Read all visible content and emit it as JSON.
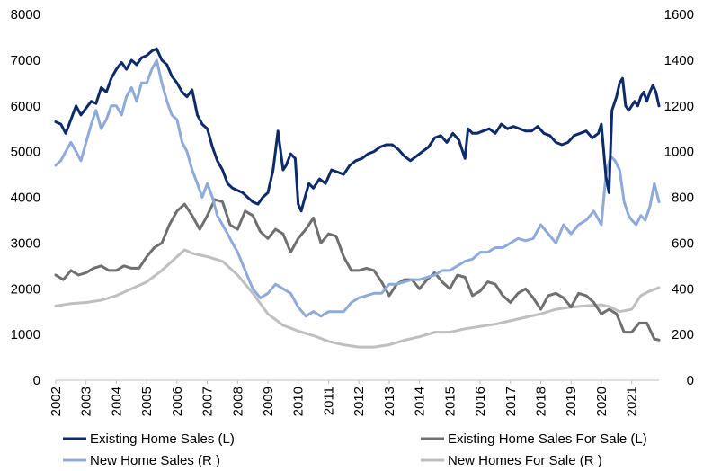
{
  "chart_data": {
    "type": "line",
    "title": "",
    "xlabel": "",
    "ylabel_left": "",
    "ylabel_right": "",
    "y_left_lim": [
      0,
      8000
    ],
    "y_right_lim": [
      0,
      1600
    ],
    "y_left_ticks": [
      "0",
      "1000",
      "2000",
      "3000",
      "4000",
      "5000",
      "6000",
      "7000",
      "8000"
    ],
    "y_right_ticks": [
      "0",
      "200",
      "400",
      "600",
      "800",
      "1000",
      "1200",
      "1400",
      "1600"
    ],
    "x_ticks": [
      "2002",
      "2003",
      "2004",
      "2005",
      "2006",
      "2007",
      "2008",
      "2009",
      "2010",
      "2011",
      "2012",
      "2013",
      "2014",
      "2015",
      "2016",
      "2017",
      "2018",
      "2019",
      "2020",
      "2021"
    ],
    "x_range": [
      2002.0,
      2021.9
    ],
    "grid": false,
    "legend_position": "bottom",
    "series": [
      {
        "name": "Existing Home Sales (L)",
        "axis": "left",
        "color": "#0d2b6b",
        "x": [
          2002.0,
          2002.17,
          2002.33,
          2002.5,
          2002.67,
          2002.83,
          2003.0,
          2003.17,
          2003.33,
          2003.5,
          2003.67,
          2003.83,
          2004.0,
          2004.17,
          2004.33,
          2004.5,
          2004.67,
          2004.83,
          2005.0,
          2005.17,
          2005.33,
          2005.5,
          2005.67,
          2005.83,
          2006.0,
          2006.17,
          2006.33,
          2006.5,
          2006.67,
          2006.83,
          2007.0,
          2007.17,
          2007.33,
          2007.5,
          2007.67,
          2007.83,
          2008.0,
          2008.17,
          2008.33,
          2008.5,
          2008.67,
          2008.83,
          2009.0,
          2009.17,
          2009.33,
          2009.5,
          2009.6,
          2009.75,
          2009.9,
          2010.0,
          2010.1,
          2010.2,
          2010.35,
          2010.5,
          2010.7,
          2010.9,
          2011.1,
          2011.3,
          2011.5,
          2011.7,
          2011.9,
          2012.1,
          2012.3,
          2012.5,
          2012.7,
          2012.9,
          2013.1,
          2013.3,
          2013.5,
          2013.7,
          2013.9,
          2014.1,
          2014.3,
          2014.5,
          2014.7,
          2014.9,
          2015.1,
          2015.3,
          2015.5,
          2015.6,
          2015.75,
          2015.9,
          2016.1,
          2016.3,
          2016.5,
          2016.7,
          2016.9,
          2017.1,
          2017.3,
          2017.5,
          2017.7,
          2017.9,
          2018.1,
          2018.3,
          2018.5,
          2018.7,
          2018.9,
          2019.1,
          2019.3,
          2019.5,
          2019.7,
          2019.9,
          2020.0,
          2020.15,
          2020.25,
          2020.35,
          2020.5,
          2020.6,
          2020.7,
          2020.8,
          2020.9,
          2021.0,
          2021.1,
          2021.2,
          2021.3,
          2021.4,
          2021.5,
          2021.6,
          2021.7,
          2021.8,
          2021.9
        ],
        "values": [
          5650,
          5600,
          5400,
          5700,
          6000,
          5800,
          5950,
          6100,
          6050,
          6400,
          6300,
          6600,
          6800,
          6950,
          6800,
          7000,
          6900,
          7050,
          7100,
          7200,
          7250,
          7000,
          6900,
          6650,
          6500,
          6300,
          6200,
          6350,
          5800,
          5600,
          5500,
          5100,
          4800,
          4600,
          4300,
          4200,
          4150,
          4100,
          4000,
          3900,
          3850,
          4000,
          4100,
          4600,
          5450,
          4600,
          4700,
          4950,
          4850,
          3850,
          3700,
          3950,
          4300,
          4200,
          4400,
          4300,
          4600,
          4550,
          4500,
          4700,
          4800,
          4850,
          4950,
          5000,
          5100,
          5150,
          5150,
          5050,
          4900,
          4800,
          4900,
          5000,
          5100,
          5300,
          5350,
          5200,
          5400,
          5250,
          4850,
          5500,
          5400,
          5400,
          5450,
          5500,
          5400,
          5600,
          5500,
          5550,
          5500,
          5450,
          5450,
          5550,
          5400,
          5350,
          5200,
          5150,
          5200,
          5350,
          5400,
          5450,
          5300,
          5400,
          5600,
          4450,
          4100,
          5900,
          6200,
          6500,
          6600,
          6000,
          5900,
          6000,
          6100,
          6000,
          6200,
          6300,
          6100,
          6300,
          6450,
          6300,
          6000
        ]
      },
      {
        "name": "Existing Home Sales For Sale (L)",
        "axis": "left",
        "color": "#6f6f6f",
        "x": [
          2002.0,
          2002.25,
          2002.5,
          2002.75,
          2003.0,
          2003.25,
          2003.5,
          2003.75,
          2004.0,
          2004.25,
          2004.5,
          2004.75,
          2005.0,
          2005.25,
          2005.5,
          2005.75,
          2006.0,
          2006.25,
          2006.5,
          2006.75,
          2007.0,
          2007.25,
          2007.5,
          2007.75,
          2008.0,
          2008.25,
          2008.5,
          2008.75,
          2009.0,
          2009.25,
          2009.5,
          2009.75,
          2010.0,
          2010.25,
          2010.5,
          2010.75,
          2011.0,
          2011.25,
          2011.5,
          2011.75,
          2012.0,
          2012.25,
          2012.5,
          2012.75,
          2013.0,
          2013.25,
          2013.5,
          2013.75,
          2014.0,
          2014.25,
          2014.5,
          2014.75,
          2015.0,
          2015.25,
          2015.5,
          2015.75,
          2016.0,
          2016.25,
          2016.5,
          2016.75,
          2017.0,
          2017.25,
          2017.5,
          2017.75,
          2018.0,
          2018.25,
          2018.5,
          2018.75,
          2019.0,
          2019.25,
          2019.5,
          2019.75,
          2020.0,
          2020.25,
          2020.5,
          2020.75,
          2021.0,
          2021.25,
          2021.5,
          2021.75,
          2021.9
        ],
        "values": [
          2300,
          2200,
          2400,
          2300,
          2350,
          2450,
          2500,
          2400,
          2400,
          2500,
          2450,
          2450,
          2700,
          2900,
          3000,
          3400,
          3700,
          3850,
          3600,
          3300,
          3600,
          3950,
          3900,
          3400,
          3300,
          3700,
          3600,
          3250,
          3100,
          3300,
          3200,
          2800,
          3100,
          3300,
          3550,
          3000,
          3200,
          3150,
          2700,
          2400,
          2400,
          2450,
          2400,
          2150,
          1850,
          2100,
          2200,
          2200,
          2000,
          2200,
          2350,
          2150,
          2000,
          2300,
          2250,
          1850,
          1950,
          2150,
          2100,
          1850,
          1700,
          1900,
          2000,
          1800,
          1550,
          1850,
          1900,
          1800,
          1600,
          1900,
          1850,
          1700,
          1450,
          1550,
          1450,
          1050,
          1050,
          1250,
          1250,
          900,
          880
        ]
      },
      {
        "name": "New Home Sales (R )",
        "axis": "right",
        "color": "#8eaadb",
        "x": [
          2002.0,
          2002.17,
          2002.33,
          2002.5,
          2002.67,
          2002.83,
          2003.0,
          2003.17,
          2003.33,
          2003.5,
          2003.67,
          2003.83,
          2004.0,
          2004.17,
          2004.33,
          2004.5,
          2004.67,
          2004.83,
          2005.0,
          2005.17,
          2005.33,
          2005.5,
          2005.67,
          2005.83,
          2006.0,
          2006.17,
          2006.33,
          2006.5,
          2006.67,
          2006.83,
          2007.0,
          2007.17,
          2007.33,
          2007.5,
          2007.67,
          2007.83,
          2008.0,
          2008.25,
          2008.5,
          2008.75,
          2009.0,
          2009.25,
          2009.5,
          2009.75,
          2010.0,
          2010.25,
          2010.5,
          2010.75,
          2011.0,
          2011.25,
          2011.5,
          2011.75,
          2012.0,
          2012.25,
          2012.5,
          2012.75,
          2013.0,
          2013.25,
          2013.5,
          2013.75,
          2014.0,
          2014.25,
          2014.5,
          2014.75,
          2015.0,
          2015.25,
          2015.5,
          2015.75,
          2016.0,
          2016.25,
          2016.5,
          2016.75,
          2017.0,
          2017.25,
          2017.5,
          2017.75,
          2018.0,
          2018.25,
          2018.5,
          2018.75,
          2019.0,
          2019.25,
          2019.5,
          2019.75,
          2020.0,
          2020.15,
          2020.3,
          2020.45,
          2020.6,
          2020.75,
          2020.9,
          2021.0,
          2021.15,
          2021.3,
          2021.45,
          2021.6,
          2021.75,
          2021.9
        ],
        "values": [
          940,
          960,
          1000,
          1040,
          1000,
          960,
          1040,
          1120,
          1180,
          1100,
          1140,
          1200,
          1200,
          1160,
          1240,
          1280,
          1220,
          1300,
          1300,
          1360,
          1400,
          1300,
          1220,
          1160,
          1140,
          1040,
          1000,
          920,
          860,
          800,
          860,
          800,
          720,
          680,
          640,
          600,
          560,
          480,
          400,
          360,
          380,
          420,
          400,
          380,
          320,
          280,
          300,
          280,
          300,
          300,
          300,
          340,
          360,
          370,
          380,
          380,
          420,
          420,
          430,
          440,
          440,
          450,
          460,
          480,
          480,
          500,
          520,
          530,
          560,
          560,
          580,
          580,
          600,
          620,
          610,
          620,
          680,
          640,
          600,
          680,
          640,
          680,
          700,
          740,
          680,
          900,
          980,
          960,
          920,
          780,
          720,
          700,
          680,
          720,
          700,
          760,
          860,
          780
        ]
      },
      {
        "name": "New Homes For Sale (R )",
        "axis": "right",
        "color": "#bfbfbf",
        "x": [
          2002.0,
          2002.5,
          2003.0,
          2003.5,
          2004.0,
          2004.5,
          2005.0,
          2005.5,
          2006.0,
          2006.25,
          2006.5,
          2007.0,
          2007.5,
          2008.0,
          2008.5,
          2009.0,
          2009.5,
          2010.0,
          2010.5,
          2011.0,
          2011.5,
          2012.0,
          2012.5,
          2013.0,
          2013.5,
          2014.0,
          2014.5,
          2015.0,
          2015.5,
          2016.0,
          2016.5,
          2017.0,
          2017.5,
          2018.0,
          2018.5,
          2019.0,
          2019.5,
          2020.0,
          2020.3,
          2020.6,
          2021.0,
          2021.3,
          2021.6,
          2021.9
        ],
        "values": [
          325,
          335,
          340,
          350,
          370,
          400,
          430,
          480,
          540,
          570,
          555,
          540,
          520,
          460,
          380,
          290,
          240,
          215,
          195,
          170,
          155,
          145,
          145,
          155,
          175,
          190,
          210,
          210,
          225,
          235,
          245,
          260,
          275,
          290,
          310,
          320,
          325,
          330,
          320,
          300,
          310,
          370,
          390,
          405
        ]
      }
    ]
  }
}
